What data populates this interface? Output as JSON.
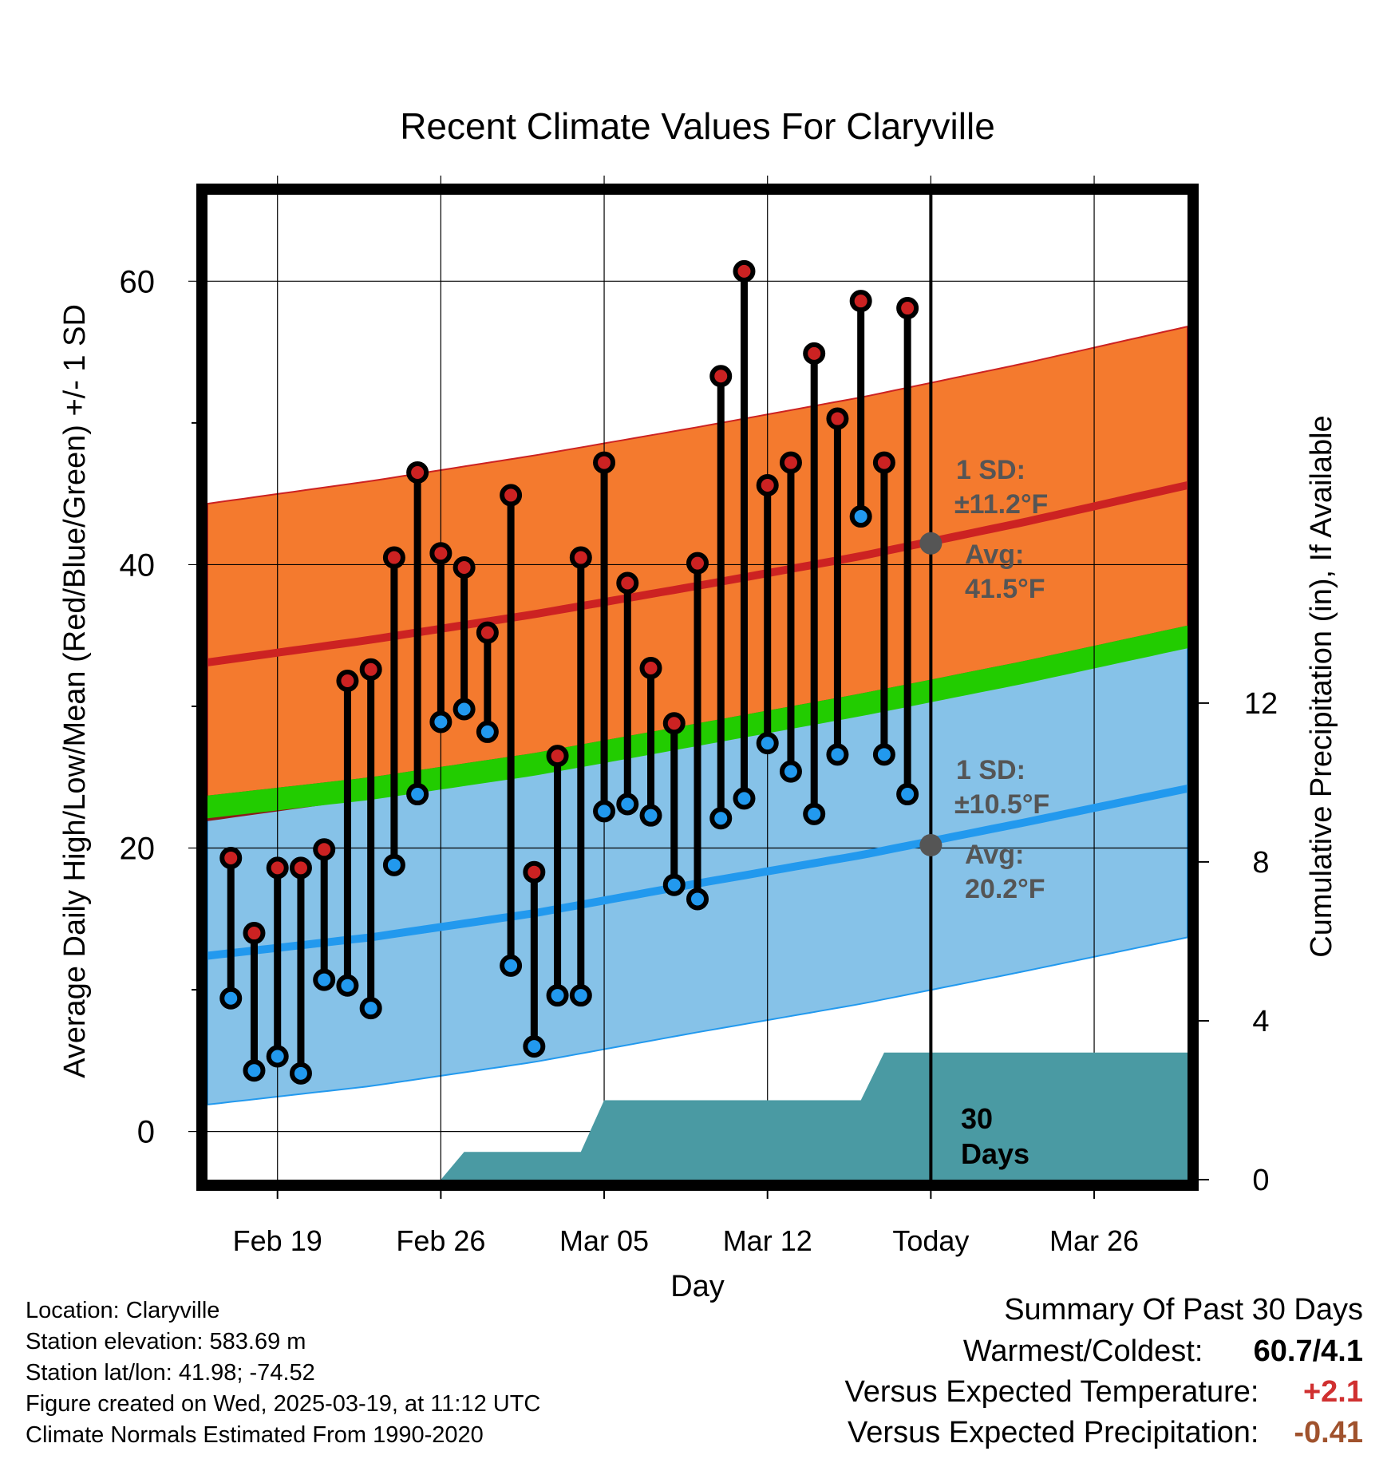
{
  "chart_data": {
    "type": "line",
    "title": "Recent Climate Values For Claryville",
    "xlabel": "Day",
    "ylabel_left": "Average Daily High/Low/Mean (Red/Blue/Green) +/- 1 SD",
    "ylabel_right": "Cumulative Precipitation (in), If Available",
    "x_ticks": [
      "Feb 19",
      "Feb 26",
      "Mar 05",
      "Mar 12",
      "Today",
      "Mar 26"
    ],
    "x_range": [
      "2025-02-16",
      "2025-03-30"
    ],
    "today": "2025-03-19",
    "y_left_ticks": [
      "0",
      "20",
      "40",
      "60"
    ],
    "y_left_range": [
      -3.4,
      66.1
    ],
    "y_right_ticks": [
      "0",
      "4",
      "8",
      "12"
    ],
    "y_right_range": [
      0,
      24.8
    ],
    "grid": true,
    "dates": [
      "2025-02-17",
      "2025-02-18",
      "2025-02-19",
      "2025-02-20",
      "2025-02-21",
      "2025-02-22",
      "2025-02-23",
      "2025-02-24",
      "2025-02-25",
      "2025-02-26",
      "2025-02-27",
      "2025-02-28",
      "2025-03-01",
      "2025-03-02",
      "2025-03-03",
      "2025-03-04",
      "2025-03-05",
      "2025-03-06",
      "2025-03-07",
      "2025-03-08",
      "2025-03-09",
      "2025-03-10",
      "2025-03-11",
      "2025-03-12",
      "2025-03-13",
      "2025-03-14",
      "2025-03-15",
      "2025-03-16",
      "2025-03-17",
      "2025-03-18"
    ],
    "highs": [
      19.3,
      14.0,
      18.6,
      18.6,
      19.9,
      31.8,
      32.6,
      40.5,
      46.5,
      40.8,
      39.8,
      35.2,
      44.9,
      18.3,
      26.5,
      40.5,
      47.2,
      38.7,
      32.7,
      28.8,
      40.1,
      53.3,
      60.7,
      45.6,
      47.2,
      54.9,
      50.3,
      58.6,
      47.2,
      58.1
    ],
    "lows": [
      9.4,
      4.3,
      5.3,
      4.1,
      10.7,
      10.3,
      8.7,
      18.8,
      23.8,
      28.9,
      29.8,
      28.2,
      11.7,
      6.0,
      9.6,
      9.6,
      22.6,
      23.1,
      22.3,
      17.4,
      16.4,
      22.1,
      23.5,
      27.4,
      25.4,
      22.4,
      26.6,
      43.4,
      26.6,
      23.8
    ],
    "normals": {
      "dates": [
        "2025-02-16",
        "2025-02-23",
        "2025-03-02",
        "2025-03-09",
        "2025-03-16",
        "2025-03-23",
        "2025-03-30"
      ],
      "high_mean": [
        33.1,
        34.7,
        36.5,
        38.5,
        40.6,
        43.0,
        45.6
      ],
      "high_sd": 11.2,
      "low_mean": [
        12.4,
        13.7,
        15.4,
        17.5,
        19.5,
        21.8,
        24.2
      ],
      "low_sd": 10.5,
      "mean": [
        22.9,
        24.2,
        25.9,
        28.0,
        30.1,
        32.4,
        34.9
      ],
      "mean_band": 0.8
    },
    "precip": {
      "dates": [
        "2025-02-26",
        "2025-02-27",
        "2025-03-04",
        "2025-03-05",
        "2025-03-16",
        "2025-03-17",
        "2025-03-30"
      ],
      "values": [
        0,
        0.7,
        0.7,
        2.0,
        2.0,
        3.2,
        3.2
      ]
    },
    "today_annotations": {
      "high_sd": "1 SD:",
      "high_sd_val": "±11.2°F",
      "high_avg": "Avg:",
      "high_avg_val": "41.5°F",
      "high_avg_value": 41.5,
      "low_sd": "1 SD:",
      "low_sd_val": "±10.5°F",
      "low_avg": "Avg:",
      "low_avg_val": "20.2°F",
      "low_avg_value": 20.2,
      "window_line1": "30",
      "window_line2": "Days"
    },
    "colors": {
      "high": "#cc2222",
      "low": "#2299ee",
      "mean": "#22cc00",
      "high_band": "#f47a2e",
      "low_band": "#86c2e8",
      "mean_overlap": "#8b1a1a",
      "precip": "#4a9aa3",
      "annotation": "#555555",
      "warm": "#d03030",
      "dry": "#a0522d"
    }
  },
  "footer": {
    "location": "Location: Claryville",
    "elevation": "Station elevation: 583.69 m",
    "latlon": "Station lat/lon: 41.98; -74.52",
    "created": "Figure created on Wed, 2025-03-19, at 11:12 UTC",
    "normals": "Climate Normals Estimated From 1990-2020"
  },
  "summary": {
    "title": "Summary Of Past 30 Days",
    "warmest_label": "Warmest/Coldest:",
    "warmest_value": "60.7/4.1",
    "temp_label": "Versus Expected Temperature:",
    "temp_value": "+2.1",
    "precip_label": "Versus Expected Precipitation:",
    "precip_value": "-0.41"
  }
}
